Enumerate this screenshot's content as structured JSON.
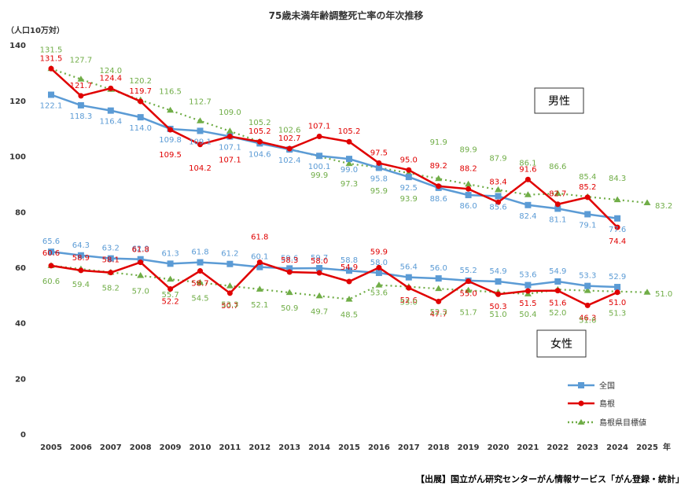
{
  "chart_data": {
    "type": "line",
    "title": "75歳未満年齢調整死亡率の年次推移",
    "ylabel": "（人口10万対）",
    "x_unit": "年",
    "ylim": [
      0,
      140
    ],
    "yticks": [
      0,
      20,
      40,
      60,
      80,
      100,
      120,
      140
    ],
    "categories": [
      "2005",
      "2006",
      "2007",
      "2008",
      "2009",
      "2010",
      "2011",
      "2012",
      "2013",
      "2014",
      "2015",
      "2016",
      "2017",
      "2018",
      "2019",
      "2020",
      "2021",
      "2022",
      "2023",
      "2024",
      "2025"
    ],
    "grid": false,
    "legend_position": "bottom-right",
    "legend": [
      {
        "name": "全国",
        "color": "#5B9BD5"
      },
      {
        "name": "島根",
        "color": "#E00000"
      },
      {
        "name": "島根県目標値",
        "color": "#70AD47"
      }
    ],
    "series": [
      {
        "name": "全国",
        "group": "男性",
        "color": "#5B9BD5",
        "values": [
          122.1,
          118.3,
          116.4,
          114.0,
          109.8,
          109.1,
          107.1,
          104.6,
          102.4,
          100.1,
          99.0,
          95.8,
          92.5,
          88.6,
          86.0,
          85.6,
          82.4,
          81.1,
          79.1,
          77.6,
          null
        ]
      },
      {
        "name": "島根",
        "group": "男性",
        "color": "#E00000",
        "values": [
          131.5,
          121.7,
          124.4,
          119.7,
          109.5,
          104.2,
          107.1,
          105.2,
          102.7,
          107.1,
          105.2,
          97.5,
          95.0,
          89.2,
          88.2,
          83.4,
          91.6,
          82.7,
          85.2,
          74.4,
          null
        ]
      },
      {
        "name": "島根県目標値",
        "group": "男性",
        "color": "#70AD47",
        "values": [
          131.5,
          127.7,
          124.0,
          120.2,
          116.5,
          112.7,
          109.0,
          105.2,
          102.6,
          99.9,
          97.3,
          95.9,
          93.9,
          91.9,
          89.9,
          87.9,
          86.1,
          86.6,
          85.4,
          84.3,
          83.2
        ]
      },
      {
        "name": "全国",
        "group": "女性",
        "color": "#5B9BD5",
        "values": [
          65.6,
          64.3,
          63.2,
          62.9,
          61.3,
          61.8,
          61.2,
          60.1,
          59.6,
          59.7,
          58.8,
          58.0,
          56.4,
          56.0,
          55.2,
          54.9,
          53.6,
          54.9,
          53.3,
          52.9,
          null
        ]
      },
      {
        "name": "島根",
        "group": "女性",
        "color": "#E00000",
        "values": [
          60.6,
          58.9,
          58.1,
          61.8,
          52.2,
          58.7,
          50.7,
          61.8,
          58.3,
          58.0,
          54.9,
          59.9,
          52.6,
          47.7,
          55.0,
          50.3,
          51.5,
          51.6,
          46.3,
          51.0,
          null
        ]
      },
      {
        "name": "島根県目標値",
        "group": "女性",
        "color": "#70AD47",
        "values": [
          60.6,
          59.4,
          58.2,
          57.0,
          55.7,
          54.5,
          53.3,
          52.1,
          50.9,
          49.7,
          48.5,
          53.6,
          53.0,
          52.3,
          51.7,
          51.0,
          50.4,
          52.0,
          51.6,
          51.3,
          51.0
        ]
      }
    ],
    "annotations": [
      {
        "text": "男性",
        "near_value": 120,
        "near_category": "2023"
      },
      {
        "text": "女性",
        "near_value": 32,
        "near_category": "2022"
      }
    ]
  },
  "source": "【出展】国立がん研究センターがん情報サービス「がん登録・統計」"
}
